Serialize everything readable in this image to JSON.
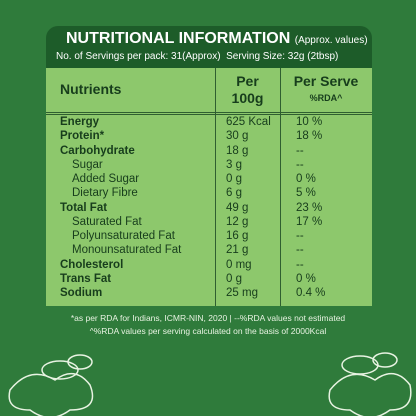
{
  "header": {
    "title": "NUTRITIONAL INFORMATION",
    "subtitle": "(Approx. values)",
    "servings": "No. of Servings per pack: 31(Approx)",
    "serving_size": "Serving Size: 32g (2tbsp)"
  },
  "table": {
    "columns": [
      {
        "lines": [
          "Nutrients"
        ]
      },
      {
        "lines": [
          "Per",
          "100g"
        ]
      },
      {
        "lines": [
          "Per Serve",
          "%RDA^"
        ]
      }
    ],
    "rows": [
      {
        "name": "Energy",
        "per_100g": "625 Kcal",
        "rda": "10 %",
        "sub": false
      },
      {
        "name": "Protein*",
        "per_100g": "30 g",
        "rda": "18 %",
        "sub": false
      },
      {
        "name": "Carbohydrate",
        "per_100g": "18 g",
        "rda": "--",
        "sub": false
      },
      {
        "name": "Sugar",
        "per_100g": "3 g",
        "rda": "--",
        "sub": true
      },
      {
        "name": "Added Sugar",
        "per_100g": "0 g",
        "rda": "0 %",
        "sub": true
      },
      {
        "name": "Dietary Fibre",
        "per_100g": "6 g",
        "rda": "5 %",
        "sub": true
      },
      {
        "name": "Total Fat",
        "per_100g": "49 g",
        "rda": "23 %",
        "sub": false
      },
      {
        "name": "Saturated Fat",
        "per_100g": "12 g",
        "rda": "17 %",
        "sub": true
      },
      {
        "name": "Polyunsaturated Fat",
        "per_100g": "16 g",
        "rda": "--",
        "sub": true
      },
      {
        "name": "Monounsaturated Fat",
        "per_100g": "21 g",
        "rda": "--",
        "sub": true
      },
      {
        "name": "Cholesterol",
        "per_100g": "0 mg",
        "rda": "--",
        "sub": false
      },
      {
        "name": "Trans Fat",
        "per_100g": "0 g",
        "rda": "0 %",
        "sub": false
      },
      {
        "name": "Sodium",
        "per_100g": "25 mg",
        "rda": "0.4 %",
        "sub": false
      }
    ]
  },
  "footnotes": [
    "*as per RDA for Indians, ICMR-NIN, 2020 | --%RDA values not estimated",
    "^%RDA values per serving calculated on the basis of 2000Kcal"
  ]
}
